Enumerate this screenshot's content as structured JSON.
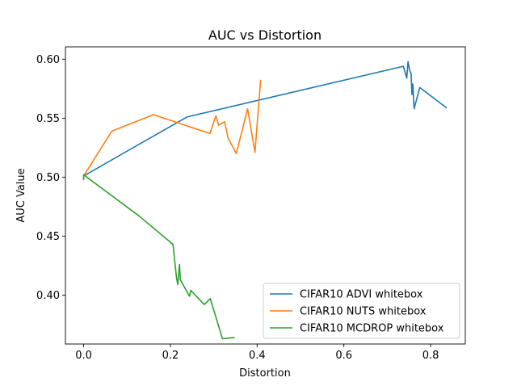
{
  "chart_data": {
    "type": "line",
    "title": "AUC vs Distortion",
    "xlabel": "Distortion",
    "ylabel": "AUC Value",
    "xlim": [
      -0.042,
      0.88
    ],
    "ylim": [
      0.3585,
      0.6105
    ],
    "xticks": [
      0.0,
      0.2,
      0.4,
      0.6,
      0.8
    ],
    "xtick_labels": [
      "0.0",
      "0.2",
      "0.4",
      "0.6",
      "0.8"
    ],
    "yticks": [
      0.4,
      0.45,
      0.5,
      0.55,
      0.6
    ],
    "ytick_labels": [
      "0.40",
      "0.45",
      "0.50",
      "0.55",
      "0.60"
    ],
    "grid": false,
    "legend_position": "lower-right",
    "series": [
      {
        "name": "CIFAR10 ADVI whitebox",
        "color": "#1f77b4",
        "x": [
          0.0,
          0.238,
          0.737,
          0.745,
          0.748,
          0.752,
          0.755,
          0.757,
          0.759,
          0.762,
          0.775,
          0.836
        ],
        "y": [
          0.501,
          0.551,
          0.594,
          0.584,
          0.598,
          0.59,
          0.588,
          0.57,
          0.579,
          0.558,
          0.576,
          0.559
        ]
      },
      {
        "name": "CIFAR10 NUTS whitebox",
        "color": "#ff7f0e",
        "x": [
          0.0,
          0.065,
          0.161,
          0.291,
          0.305,
          0.311,
          0.325,
          0.333,
          0.352,
          0.378,
          0.395,
          0.408
        ],
        "y": [
          0.501,
          0.539,
          0.553,
          0.537,
          0.552,
          0.544,
          0.547,
          0.533,
          0.52,
          0.558,
          0.521,
          0.582
        ]
      },
      {
        "name": "CIFAR10 MCDROP whitebox",
        "color": "#2ca02c",
        "x": [
          0.0,
          0.0,
          0.128,
          0.206,
          0.214,
          0.217,
          0.221,
          0.223,
          0.244,
          0.247,
          0.278,
          0.292,
          0.32,
          0.347
        ],
        "y": [
          0.498,
          0.502,
          0.467,
          0.443,
          0.415,
          0.409,
          0.426,
          0.413,
          0.399,
          0.404,
          0.392,
          0.397,
          0.363,
          0.364
        ]
      }
    ]
  }
}
